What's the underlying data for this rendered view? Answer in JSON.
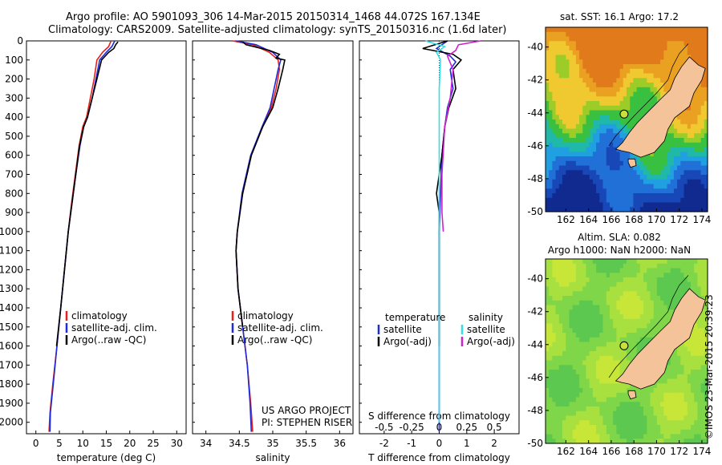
{
  "title": {
    "line1": "Argo profile: AO 5901093_306 14-Mar-2015 20150314_1468 44.072S 167.134E",
    "line2": "Climatology: CARS2009. Satellite-adjusted climatology: synTS_20150316.nc (1.6d later)"
  },
  "colors": {
    "climatology": "#e8201c",
    "satellite": "#1f2ad8",
    "argo": "#000000",
    "salinity_sat": "#2fe0e8",
    "salinity_argo": "#d020d0",
    "land": "#f5c39a"
  },
  "credit": "©IMOS 23-Mar-2015 20:39:23",
  "project": {
    "line1": "US ARGO PROJECT",
    "line2": "PI: STEPHEN RISER"
  },
  "chart_data": [
    {
      "type": "line",
      "xlabel": "temperature (deg C)",
      "xlim": [
        -2,
        32
      ],
      "ylim": [
        0,
        2060
      ],
      "xticks": [
        "0",
        "5",
        "10",
        "15",
        "20",
        "25",
        "30"
      ],
      "yticks": [
        "0",
        "100",
        "200",
        "300",
        "400",
        "500",
        "600",
        "700",
        "800",
        "900",
        "1000",
        "1100",
        "1200",
        "1300",
        "1400",
        "1500",
        "1600",
        "1700",
        "1800",
        "1900",
        "2000"
      ],
      "legend": [
        "climatology",
        "satellite-adj. clim.",
        "Argo(..raw -QC)"
      ],
      "series": [
        {
          "name": "climatology",
          "color": "#e8201c",
          "points": [
            [
              16.0,
              0
            ],
            [
              15.5,
              30
            ],
            [
              14.2,
              60
            ],
            [
              13.0,
              100
            ],
            [
              12.4,
              200
            ],
            [
              11.6,
              300
            ],
            [
              10.8,
              400
            ],
            [
              10.0,
              450
            ],
            [
              9.2,
              550
            ],
            [
              8.4,
              700
            ],
            [
              7.6,
              850
            ],
            [
              6.9,
              1000
            ],
            [
              6.1,
              1200
            ],
            [
              5.3,
              1400
            ],
            [
              4.5,
              1600
            ],
            [
              3.6,
              1800
            ],
            [
              3.0,
              1950
            ],
            [
              2.8,
              2050
            ]
          ]
        },
        {
          "name": "satellite-adj. clim.",
          "color": "#1f2ad8",
          "points": [
            [
              16.8,
              0
            ],
            [
              16.2,
              30
            ],
            [
              15.0,
              60
            ],
            [
              13.6,
              100
            ],
            [
              12.8,
              200
            ],
            [
              12.0,
              300
            ],
            [
              11.0,
              400
            ],
            [
              10.2,
              450
            ],
            [
              9.4,
              550
            ],
            [
              8.5,
              700
            ],
            [
              7.7,
              850
            ],
            [
              6.9,
              1000
            ],
            [
              6.1,
              1200
            ],
            [
              5.3,
              1400
            ],
            [
              4.5,
              1600
            ],
            [
              3.7,
              1800
            ],
            [
              3.1,
              1950
            ],
            [
              3.0,
              2050
            ]
          ]
        },
        {
          "name": "Argo(..raw -QC)",
          "color": "#000000",
          "points": [
            [
              17.5,
              5
            ],
            [
              17.0,
              20
            ],
            [
              16.6,
              40
            ],
            [
              15.5,
              60
            ],
            [
              14.0,
              100
            ],
            [
              13.0,
              200
            ],
            [
              12.0,
              300
            ],
            [
              11.0,
              400
            ],
            [
              10.2,
              450
            ],
            [
              9.3,
              550
            ],
            [
              8.5,
              700
            ],
            [
              7.7,
              850
            ],
            [
              6.9,
              1000
            ],
            [
              6.1,
              1200
            ],
            [
              5.3,
              1400
            ],
            [
              4.4,
              1600
            ]
          ]
        }
      ]
    },
    {
      "type": "line",
      "xlabel": "salinity",
      "xlim": [
        33.8,
        36.2
      ],
      "ylim": [
        0,
        2060
      ],
      "xticks": [
        "34",
        "34.5",
        "35",
        "35.5",
        "36"
      ],
      "legend": [
        "climatology",
        "satellite-adj. clim.",
        "Argo(..raw -QC)"
      ],
      "series": [
        {
          "name": "climatology",
          "color": "#e8201c",
          "points": [
            [
              34.4,
              0
            ],
            [
              34.7,
              20
            ],
            [
              34.95,
              60
            ],
            [
              35.08,
              100
            ],
            [
              35.1,
              150
            ],
            [
              35.05,
              250
            ],
            [
              34.98,
              350
            ],
            [
              34.85,
              450
            ],
            [
              34.68,
              600
            ],
            [
              34.55,
              800
            ],
            [
              34.47,
              1000
            ],
            [
              34.45,
              1100
            ],
            [
              34.48,
              1300
            ],
            [
              34.55,
              1500
            ],
            [
              34.62,
              1700
            ],
            [
              34.67,
              1900
            ],
            [
              34.7,
              2050
            ]
          ]
        },
        {
          "name": "satellite-adj. clim.",
          "color": "#1f2ad8",
          "points": [
            [
              34.45,
              0
            ],
            [
              34.75,
              20
            ],
            [
              35.0,
              60
            ],
            [
              35.12,
              100
            ],
            [
              35.08,
              150
            ],
            [
              35.02,
              250
            ],
            [
              34.96,
              350
            ],
            [
              34.84,
              450
            ],
            [
              34.67,
              600
            ],
            [
              34.54,
              800
            ],
            [
              34.47,
              1000
            ],
            [
              34.45,
              1100
            ],
            [
              34.48,
              1300
            ],
            [
              34.55,
              1500
            ],
            [
              34.62,
              1700
            ],
            [
              34.66,
              1900
            ],
            [
              34.68,
              2050
            ]
          ]
        },
        {
          "name": "Argo(..raw -QC)",
          "color": "#000000",
          "points": [
            [
              34.55,
              5
            ],
            [
              34.6,
              20
            ],
            [
              34.95,
              50
            ],
            [
              35.1,
              70
            ],
            [
              35.05,
              90
            ],
            [
              35.18,
              100
            ],
            [
              35.15,
              150
            ],
            [
              35.08,
              250
            ],
            [
              35.0,
              350
            ],
            [
              34.85,
              450
            ],
            [
              34.68,
              600
            ],
            [
              34.55,
              800
            ],
            [
              34.47,
              1000
            ],
            [
              34.45,
              1100
            ],
            [
              34.48,
              1300
            ],
            [
              34.55,
              1500
            ]
          ]
        }
      ]
    },
    {
      "type": "line",
      "xlabel": "T difference from climatology",
      "xlabel_top": "S difference from climatology",
      "xlim": [
        -2.9,
        2.9
      ],
      "ylim": [
        0,
        2060
      ],
      "xticks": [
        "-2",
        "-1",
        "0",
        "1",
        "2"
      ],
      "xticks_top": [
        "-0.5",
        "-0.25",
        "0",
        "0.25",
        "0.5"
      ],
      "legend_titles": [
        "temperature",
        "salinity"
      ],
      "legend": [
        "satellite",
        "Argo(-adj)",
        "satellite",
        "Argo(-adj)"
      ],
      "series": [
        {
          "name": "satellite",
          "color": "#1f2ad8",
          "points": [
            [
              0.3,
              0
            ],
            [
              -0.1,
              40
            ],
            [
              0.4,
              80
            ],
            [
              0.6,
              110
            ],
            [
              0.4,
              150
            ],
            [
              0.5,
              250
            ],
            [
              0.3,
              350
            ],
            [
              0.2,
              450
            ],
            [
              0.1,
              600
            ],
            [
              0.05,
              800
            ],
            [
              0.0,
              1000
            ],
            [
              0.0,
              1400
            ],
            [
              0.0,
              2050
            ]
          ]
        },
        {
          "name": "Argo(-adj)",
          "color": "#000000",
          "points": [
            [
              0.3,
              0
            ],
            [
              -0.6,
              40
            ],
            [
              0.5,
              70
            ],
            [
              0.8,
              100
            ],
            [
              0.5,
              150
            ],
            [
              0.6,
              250
            ],
            [
              0.35,
              350
            ],
            [
              0.2,
              450
            ],
            [
              0.1,
              600
            ],
            [
              0.0,
              700
            ],
            [
              -0.1,
              800
            ],
            [
              0.0,
              900
            ],
            [
              0.0,
              1100
            ],
            [
              0.0,
              1600
            ]
          ]
        },
        {
          "name": "satellite",
          "color": "#2fe0e8",
          "points": [
            [
              -0.5,
              0
            ],
            [
              0.2,
              30
            ],
            [
              -0.1,
              60
            ],
            [
              0.05,
              100
            ],
            [
              0.0,
              250
            ],
            [
              0.0,
              400
            ],
            [
              0.0,
              700
            ],
            [
              0.0,
              1000
            ],
            [
              0.0,
              1500
            ],
            [
              0.0,
              2000
            ]
          ]
        },
        {
          "name": "Argo(-adj)",
          "color": "#d020d0",
          "points": [
            [
              1.5,
              0
            ],
            [
              0.7,
              20
            ],
            [
              0.6,
              50
            ],
            [
              0.3,
              80
            ],
            [
              0.5,
              150
            ],
            [
              0.4,
              300
            ],
            [
              0.2,
              450
            ],
            [
              0.1,
              700
            ],
            [
              0.1,
              900
            ],
            [
              0.15,
              1000
            ]
          ]
        }
      ]
    }
  ],
  "maps": [
    {
      "title": "sat. SST: 16.1 Argo: 17.2",
      "yticks": [
        "-40",
        "-42",
        "-44",
        "-46",
        "-48",
        "-50"
      ],
      "xticks": [
        "162",
        "164",
        "166",
        "168",
        "170",
        "172",
        "174"
      ],
      "lat_range": [
        -50,
        -38.8
      ],
      "lon_range": [
        160.2,
        174.5
      ],
      "marker": {
        "lon": 167.134,
        "lat": -44.072
      }
    },
    {
      "title_line1": "Altim. SLA: 0.082",
      "title_line2": "Argo h1000: NaN h2000: NaN",
      "yticks": [
        "-40",
        "-42",
        "-44",
        "-46",
        "-48",
        "-50"
      ],
      "xticks": [
        "162",
        "164",
        "166",
        "168",
        "170",
        "172",
        "174"
      ],
      "lat_range": [
        -50,
        -38.8
      ],
      "lon_range": [
        160.2,
        174.5
      ],
      "marker": {
        "lon": 167.134,
        "lat": -44.072
      }
    }
  ]
}
